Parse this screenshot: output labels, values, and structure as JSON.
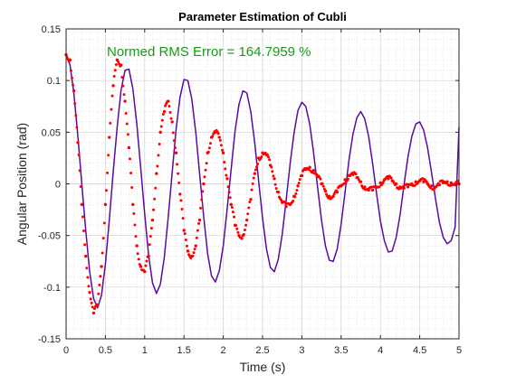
{
  "chart_data": {
    "type": "scatter",
    "title": "Parameter Estimation of Cubli",
    "xlabel": "Time (s)",
    "ylabel": "Angular Position (rad)",
    "xlim": [
      0,
      5
    ],
    "ylim": [
      -0.15,
      0.15
    ],
    "x_ticks": [
      0,
      0.5,
      1,
      1.5,
      2,
      2.5,
      3,
      3.5,
      4,
      4.5,
      5
    ],
    "x_tick_labels": [
      "0",
      "0.5",
      "1",
      "1.5",
      "2",
      "2.5",
      "3",
      "3.5",
      "4",
      "4.5",
      "5"
    ],
    "y_ticks": [
      -0.15,
      -0.1,
      -0.05,
      0,
      0.05,
      0.1,
      0.15
    ],
    "y_tick_labels": [
      "-0.15",
      "-0.1",
      "-0.05",
      "0",
      "0.05",
      "0.1",
      "0.15"
    ],
    "grid": true,
    "minor_grid": true,
    "annotation": "Normed RMS Error = 164.7959 %",
    "colors": {
      "measured": "#ff0000",
      "model": "#5b0a9e",
      "annotation": "#1a9a1a"
    },
    "series": [
      {
        "style": "markers",
        "x": [
          0.0,
          0.05,
          0.1,
          0.15,
          0.2,
          0.25,
          0.3,
          0.35,
          0.4,
          0.45,
          0.5,
          0.55,
          0.6,
          0.65,
          0.7,
          0.75,
          0.8,
          0.85,
          0.9,
          0.95,
          1.0,
          1.05,
          1.1,
          1.15,
          1.2,
          1.25,
          1.3,
          1.35,
          1.4,
          1.45,
          1.5,
          1.55,
          1.6,
          1.65,
          1.7,
          1.75,
          1.8,
          1.85,
          1.9,
          1.95,
          2.0,
          2.05,
          2.1,
          2.15,
          2.2,
          2.25,
          2.3,
          2.35,
          2.4,
          2.45,
          2.5,
          2.55,
          2.6,
          2.65,
          2.7,
          2.75,
          2.8,
          2.85,
          2.9,
          2.95,
          3.0,
          3.05,
          3.1,
          3.15,
          3.2,
          3.25,
          3.3,
          3.35,
          3.4,
          3.45,
          3.5,
          3.55,
          3.6,
          3.65,
          3.7,
          3.75,
          3.8,
          3.85,
          3.9,
          3.95,
          4.0,
          4.05,
          4.1,
          4.15,
          4.2,
          4.25,
          4.3,
          4.35,
          4.4,
          4.45,
          4.5,
          4.55,
          4.6,
          4.65,
          4.7,
          4.75,
          4.8,
          4.85,
          4.9,
          4.95,
          5.0
        ],
        "y": [
          0.125,
          0.12,
          0.09,
          0.04,
          -0.02,
          -0.07,
          -0.105,
          -0.125,
          -0.118,
          -0.08,
          -0.02,
          0.045,
          0.095,
          0.12,
          0.115,
          0.08,
          0.035,
          -0.02,
          -0.06,
          -0.08,
          -0.085,
          -0.07,
          -0.035,
          0.01,
          0.05,
          0.07,
          0.08,
          0.06,
          0.03,
          -0.01,
          -0.045,
          -0.065,
          -0.07,
          -0.06,
          -0.035,
          0.0,
          0.03,
          0.045,
          0.05,
          0.045,
          0.03,
          0.005,
          -0.02,
          -0.04,
          -0.05,
          -0.05,
          -0.035,
          -0.015,
          0.01,
          0.025,
          0.03,
          0.028,
          0.018,
          0.005,
          -0.008,
          -0.018,
          -0.022,
          -0.02,
          -0.012,
          -0.002,
          0.008,
          0.014,
          0.016,
          0.013,
          0.007,
          0.0,
          -0.007,
          -0.012,
          -0.012,
          -0.008,
          -0.002,
          0.004,
          0.008,
          0.009,
          0.006,
          0.002,
          -0.003,
          -0.006,
          -0.006,
          -0.003,
          0.001,
          0.004,
          0.005,
          0.003,
          0.0,
          -0.003,
          -0.004,
          -0.003,
          0.0,
          0.002,
          0.003,
          0.002,
          0.0,
          -0.002,
          -0.003,
          -0.001,
          0.001,
          0.002,
          0.001,
          -0.001,
          0.0
        ]
      },
      {
        "style": "line",
        "x": [
          0.0,
          0.05,
          0.1,
          0.15,
          0.2,
          0.25,
          0.3,
          0.35,
          0.4,
          0.45,
          0.5,
          0.55,
          0.6,
          0.65,
          0.7,
          0.75,
          0.8,
          0.85,
          0.9,
          0.95,
          1.0,
          1.05,
          1.1,
          1.15,
          1.2,
          1.25,
          1.3,
          1.35,
          1.4,
          1.45,
          1.5,
          1.55,
          1.6,
          1.65,
          1.7,
          1.75,
          1.8,
          1.85,
          1.9,
          1.95,
          2.0,
          2.05,
          2.1,
          2.15,
          2.2,
          2.25,
          2.3,
          2.35,
          2.4,
          2.45,
          2.5,
          2.55,
          2.6,
          2.65,
          2.7,
          2.75,
          2.8,
          2.85,
          2.9,
          2.95,
          3.0,
          3.05,
          3.1,
          3.15,
          3.2,
          3.25,
          3.3,
          3.35,
          3.4,
          3.45,
          3.5,
          3.55,
          3.6,
          3.65,
          3.7,
          3.75,
          3.8,
          3.85,
          3.9,
          3.95,
          4.0,
          4.05,
          4.1,
          4.15,
          4.2,
          4.25,
          4.3,
          4.35,
          4.4,
          4.45,
          4.5,
          4.55,
          4.6,
          4.65,
          4.7,
          4.75,
          4.8,
          4.85,
          4.9,
          4.95,
          5.0
        ],
        "y": [
          0.125,
          0.115,
          0.087,
          0.046,
          0.0,
          -0.045,
          -0.085,
          -0.111,
          -0.12,
          -0.108,
          -0.078,
          -0.035,
          0.012,
          0.055,
          0.091,
          0.11,
          0.111,
          0.092,
          0.058,
          0.015,
          -0.029,
          -0.069,
          -0.096,
          -0.106,
          -0.097,
          -0.071,
          -0.032,
          0.011,
          0.053,
          0.084,
          0.101,
          0.1,
          0.082,
          0.05,
          0.009,
          -0.031,
          -0.067,
          -0.089,
          -0.095,
          -0.084,
          -0.06,
          -0.024,
          0.014,
          0.051,
          0.077,
          0.09,
          0.088,
          0.07,
          0.04,
          0.003,
          -0.033,
          -0.063,
          -0.081,
          -0.085,
          -0.073,
          -0.049,
          -0.016,
          0.019,
          0.049,
          0.071,
          0.079,
          0.075,
          0.058,
          0.03,
          -0.003,
          -0.035,
          -0.06,
          -0.074,
          -0.075,
          -0.063,
          -0.039,
          -0.008,
          0.023,
          0.048,
          0.064,
          0.07,
          0.063,
          0.046,
          0.02,
          -0.009,
          -0.036,
          -0.055,
          -0.066,
          -0.065,
          -0.052,
          -0.03,
          -0.001,
          0.026,
          0.046,
          0.058,
          0.06,
          0.052,
          0.035,
          0.011,
          -0.014,
          -0.037,
          -0.052,
          -0.058,
          -0.055,
          -0.042,
          0.055
        ]
      }
    ]
  }
}
